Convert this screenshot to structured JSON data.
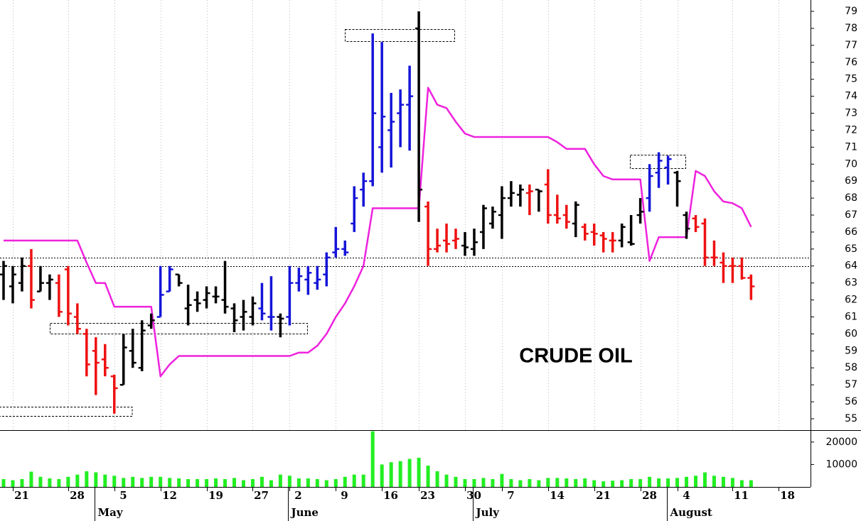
{
  "chart_data": {
    "type": "ohlc",
    "annotation": "CRUDE OIL",
    "categories": [
      null,
      "21",
      null,
      null,
      null,
      null,
      null,
      "28",
      null,
      null,
      null,
      null,
      "5",
      null,
      null,
      null,
      null,
      "12",
      null,
      null,
      null,
      null,
      "19",
      null,
      null,
      null,
      null,
      "27",
      null,
      null,
      null,
      "2",
      null,
      null,
      null,
      null,
      "9",
      null,
      null,
      null,
      null,
      "16",
      null,
      null,
      null,
      "23",
      null,
      null,
      null,
      null,
      "30",
      null,
      null,
      null,
      "7",
      null,
      null,
      null,
      null,
      "14",
      null,
      null,
      null,
      null,
      "21",
      null,
      null,
      null,
      null,
      "28",
      null,
      null,
      null,
      "4",
      null,
      null,
      null,
      null,
      null,
      "11",
      null,
      null,
      null,
      null,
      "18",
      null,
      null
    ],
    "months": [
      null,
      null,
      null,
      null,
      null,
      null,
      null,
      null,
      null,
      null,
      "May",
      null,
      null,
      null,
      null,
      null,
      null,
      null,
      null,
      null,
      null,
      null,
      null,
      null,
      null,
      null,
      null,
      null,
      null,
      null,
      null,
      "June",
      null,
      null,
      null,
      null,
      null,
      null,
      null,
      null,
      null,
      null,
      null,
      null,
      null,
      null,
      null,
      null,
      null,
      null,
      null,
      "July",
      null,
      null,
      null,
      null,
      null,
      null,
      null,
      null,
      null,
      null,
      null,
      null,
      null,
      null,
      null,
      null,
      null,
      null,
      null,
      null,
      "August",
      null,
      null,
      null,
      null,
      null,
      null,
      null,
      null,
      null,
      null,
      null,
      null,
      null
    ],
    "open": [
      63.5,
      62.8,
      63,
      64,
      62.5,
      63,
      63,
      63.8,
      61,
      60,
      59,
      58.5,
      57.5,
      57,
      59,
      58,
      60.5,
      61,
      62.5,
      63.5,
      61.5,
      62,
      62,
      62.2,
      62,
      61.5,
      61,
      61,
      61.5,
      61,
      61,
      61,
      63,
      63.2,
      63,
      63.5,
      64.8,
      65,
      66.5,
      68.5,
      69,
      71,
      72,
      73,
      73.5,
      78,
      67.5,
      65,
      65.5,
      65.5,
      65.2,
      65,
      66,
      66.5,
      67,
      68,
      68.2,
      68.3,
      68.5,
      68.8,
      67,
      67,
      66.5,
      66.3,
      66,
      65.8,
      65.5,
      65.5,
      65.4,
      67,
      68,
      69.5,
      69.8,
      69.5,
      67,
      66.8,
      66.5,
      64.5,
      64.2,
      64,
      64,
      63.3,
      null,
      null,
      null,
      null,
      null
    ],
    "high": [
      64.3,
      64,
      64.5,
      65,
      64,
      63.5,
      63.5,
      64,
      61.8,
      60.3,
      59.8,
      59.4,
      57.6,
      60,
      60.3,
      60.8,
      61.2,
      64,
      64,
      63.5,
      62.9,
      62.5,
      62.8,
      62.8,
      64.3,
      61.8,
      62,
      62.2,
      63,
      63.4,
      61.2,
      64,
      63.9,
      64,
      64,
      64.8,
      66.3,
      65.5,
      68.7,
      69.5,
      77.7,
      77.2,
      74.2,
      74.4,
      75.8,
      79,
      67.8,
      66.2,
      66.5,
      66.2,
      66,
      66.2,
      67.6,
      67.5,
      68.7,
      69,
      68.8,
      68.8,
      68.5,
      69.7,
      68.2,
      67.6,
      67.8,
      66.5,
      66.5,
      66,
      66,
      66.5,
      67,
      68,
      70,
      70.7,
      70.5,
      69.6,
      67.2,
      67,
      66.8,
      65.5,
      64.8,
      64.5,
      64.5,
      63.5,
      null,
      null,
      null,
      null,
      null
    ],
    "low": [
      62,
      61.8,
      62.5,
      61.5,
      62.5,
      62,
      61,
      60.5,
      60,
      57.5,
      56.4,
      57.5,
      55.3,
      57,
      58,
      57.8,
      60.3,
      61,
      62.5,
      62.8,
      60.5,
      61.3,
      61.5,
      61.8,
      61.2,
      60.1,
      60.2,
      60.5,
      60.8,
      60.2,
      59.8,
      60.5,
      62.5,
      62.3,
      62.6,
      62.8,
      64.5,
      64.6,
      66,
      67.5,
      68.7,
      69.5,
      69.8,
      71,
      70.8,
      66.6,
      64,
      64.8,
      64.8,
      65,
      64.6,
      64.6,
      65,
      66.2,
      65.6,
      67.5,
      67.5,
      67,
      67.2,
      66.5,
      66.5,
      66.2,
      65.7,
      65.5,
      65.2,
      64.8,
      64.8,
      65.1,
      65.2,
      66.5,
      67.2,
      68.6,
      68.8,
      67.5,
      65.6,
      66,
      64,
      64,
      63,
      63,
      63.2,
      62,
      null,
      null,
      null,
      null,
      null
    ],
    "close": [
      64,
      63.5,
      64,
      62,
      63,
      63.2,
      61.3,
      61.2,
      60.3,
      58.2,
      58.3,
      58,
      56.8,
      59.2,
      58.3,
      60.2,
      60.8,
      62.3,
      63.8,
      63,
      61.7,
      61.8,
      62.4,
      62.2,
      61.6,
      60.8,
      61.3,
      61.8,
      61.2,
      61,
      60.9,
      63,
      63.4,
      63.6,
      63.2,
      64.5,
      65,
      64.8,
      68,
      69,
      73,
      72.8,
      72.5,
      73.5,
      74,
      68.5,
      65,
      65.2,
      65.3,
      65.6,
      65.1,
      65.4,
      67.4,
      67.2,
      68,
      68.3,
      68.5,
      68.4,
      68.4,
      67,
      66.8,
      66.6,
      67.6,
      65.9,
      65.9,
      65.6,
      65.5,
      66.3,
      65.3,
      67.2,
      69.3,
      70.2,
      70.3,
      69,
      66.2,
      66.3,
      64.5,
      64.5,
      64,
      64,
      63.3,
      62.8,
      null,
      null,
      null,
      null,
      null
    ],
    "bar_colors": [
      "#000000",
      "#000000",
      "#000000",
      "#ee1111",
      "#000000",
      "#000000",
      "#ee1111",
      "#ee1111",
      "#ee1111",
      "#ee1111",
      "#ee1111",
      "#ee1111",
      "#ee1111",
      "#000000",
      "#000000",
      "#000000",
      "#000000",
      "#1414d8",
      "#1414d8",
      "#000000",
      "#000000",
      "#000000",
      "#000000",
      "#000000",
      "#000000",
      "#000000",
      "#000000",
      "#000000",
      "#1414d8",
      "#1414d8",
      "#000000",
      "#1414d8",
      "#1414d8",
      "#1414d8",
      "#1414d8",
      "#1414d8",
      "#1414d8",
      "#1414d8",
      "#1414d8",
      "#1414d8",
      "#1414d8",
      "#1414d8",
      "#1414d8",
      "#1414d8",
      "#1414d8",
      "#000000",
      "#ee1111",
      "#ee1111",
      "#ee1111",
      "#ee1111",
      "#000000",
      "#000000",
      "#000000",
      "#000000",
      "#000000",
      "#000000",
      "#000000",
      "#ee1111",
      "#000000",
      "#ee1111",
      "#ee1111",
      "#ee1111",
      "#000000",
      "#ee1111",
      "#ee1111",
      "#ee1111",
      "#ee1111",
      "#000000",
      "#000000",
      "#000000",
      "#1414d8",
      "#1414d8",
      "#1414d8",
      "#000000",
      "#000000",
      "#ee1111",
      "#ee1111",
      "#ee1111",
      "#ee1111",
      "#ee1111",
      "#ee1111",
      "#ee1111",
      null,
      null,
      null,
      null,
      null
    ],
    "stop_line": {
      "color": "#ee22dd",
      "values": [
        65.5,
        65.5,
        65.5,
        65.5,
        65.5,
        65.5,
        65.5,
        65.5,
        65.5,
        64.2,
        63,
        63,
        61.6,
        61.6,
        61.6,
        61.6,
        61.6,
        57.5,
        58.2,
        58.7,
        58.7,
        58.7,
        58.7,
        58.7,
        58.7,
        58.7,
        58.7,
        58.7,
        58.7,
        58.7,
        58.7,
        58.7,
        58.9,
        58.9,
        59.3,
        60,
        61,
        61.8,
        62.8,
        64,
        67.4,
        67.4,
        67.4,
        67.4,
        67.4,
        67.4,
        74.5,
        73.5,
        73.3,
        72.5,
        71.8,
        71.6,
        71.6,
        71.6,
        71.6,
        71.6,
        71.6,
        71.6,
        71.6,
        71.6,
        71.3,
        70.9,
        70.9,
        70.9,
        70,
        69.3,
        69.1,
        69.1,
        69.1,
        69.1,
        64.3,
        65.7,
        65.7,
        65.7,
        65.7,
        69.6,
        69.3,
        68.4,
        67.8,
        67.7,
        67.4,
        66.3,
        null,
        null,
        null,
        null,
        null
      ]
    },
    "levels": [
      64.5,
      64
    ],
    "ylim": [
      54.33,
      79.67
    ],
    "yticks": [
      55,
      56,
      57,
      58,
      59,
      60,
      61,
      62,
      63,
      64,
      65,
      66,
      67,
      68,
      69,
      70,
      71,
      72,
      73,
      74,
      75,
      76,
      77,
      78,
      79
    ],
    "volume": {
      "color": "#22ee22",
      "values": [
        3500,
        3000,
        3500,
        6800,
        4500,
        3800,
        3500,
        4500,
        5500,
        7000,
        6500,
        5500,
        5000,
        4000,
        4500,
        4000,
        4500,
        4500,
        4000,
        3800,
        3500,
        3500,
        3500,
        3800,
        3500,
        4000,
        3000,
        3500,
        4500,
        3000,
        5500,
        5000,
        3800,
        3800,
        3500,
        3000,
        3500,
        4500,
        5500,
        5500,
        24800,
        10000,
        11000,
        11500,
        12500,
        13000,
        9500,
        7000,
        5500,
        4500,
        3500,
        3500,
        4000,
        3500,
        5800,
        3500,
        3000,
        3500,
        3000,
        4000,
        4000,
        3800,
        3500,
        3800,
        3000,
        2500,
        2800,
        3000,
        3500,
        3500,
        4500,
        3800,
        3800,
        4000,
        4500,
        5000,
        6500,
        5000,
        4500,
        4000,
        3000,
        3000,
        null,
        null,
        null,
        null,
        null
      ],
      "ylim": [
        0,
        25000
      ],
      "yticks": [
        10000,
        20000
      ]
    },
    "grid": true
  }
}
